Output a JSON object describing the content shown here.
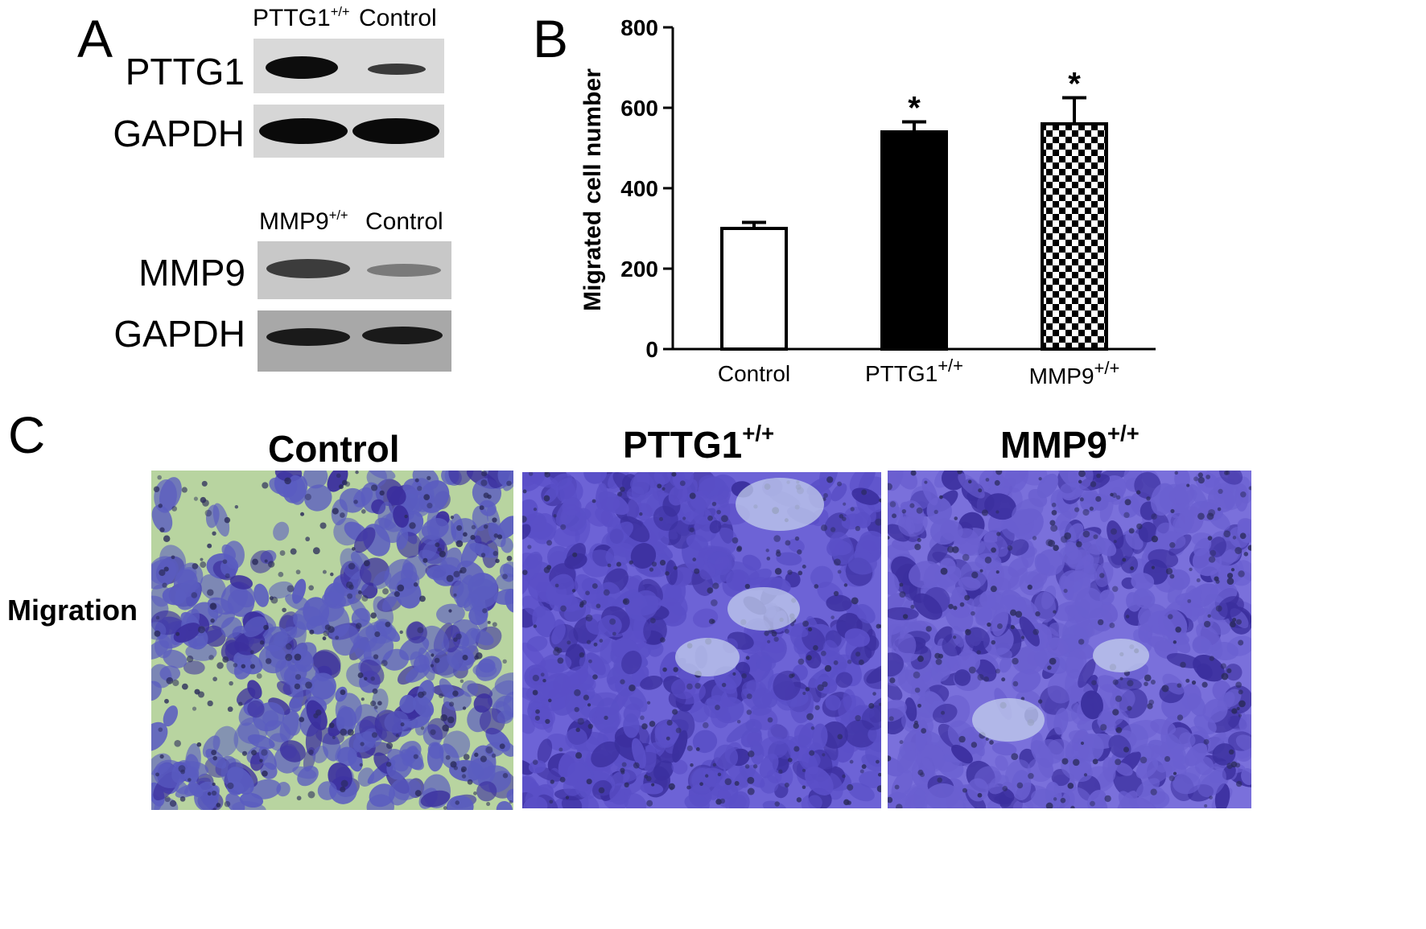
{
  "panel_a": {
    "letter": "A",
    "blot1": {
      "lane_labels": {
        "lane1_base": "PTTG1",
        "lane1_sup": "+/+",
        "lane2": "Control"
      },
      "rows": [
        "PTTG1",
        "GAPDH"
      ]
    },
    "blot2": {
      "lane_labels": {
        "lane1_base": "MMP9",
        "lane1_sup": "+/+",
        "lane2": "Control"
      },
      "rows": [
        "MMP9",
        "GAPDH"
      ]
    }
  },
  "panel_b": {
    "letter": "B",
    "significance_mark": "*",
    "category_labels": [
      {
        "base": "Control",
        "sup": ""
      },
      {
        "base": "PTTG1",
        "sup": "+/+"
      },
      {
        "base": "MMP9",
        "sup": "+/+"
      }
    ]
  },
  "chart_data": {
    "type": "bar",
    "title": "",
    "xlabel": "",
    "ylabel": "Migrated cell number",
    "categories": [
      "Control",
      "PTTG1+/+",
      "MMP9+/+"
    ],
    "values": [
      300,
      540,
      560
    ],
    "error_bars": [
      15,
      25,
      65
    ],
    "significant": [
      false,
      true,
      true
    ],
    "bar_fills": [
      "white",
      "black",
      "checkered"
    ],
    "ylim": [
      0,
      800
    ],
    "yticks": [
      0,
      200,
      400,
      600,
      800
    ],
    "grid": false,
    "legend": "none"
  },
  "panel_c": {
    "letter": "C",
    "row_label": "Migration",
    "columns": [
      {
        "base": "Control",
        "sup": ""
      },
      {
        "base": "PTTG1",
        "sup": "+/+"
      },
      {
        "base": "MMP9",
        "sup": "+/+"
      }
    ]
  },
  "colors": {
    "stain_purple": "#5a4fc7",
    "stain_dark": "#3b2f9e",
    "control_bg": "#b8d4a0",
    "light_bg": "#c9d6ee",
    "blot_band": "#1a1a1a"
  }
}
